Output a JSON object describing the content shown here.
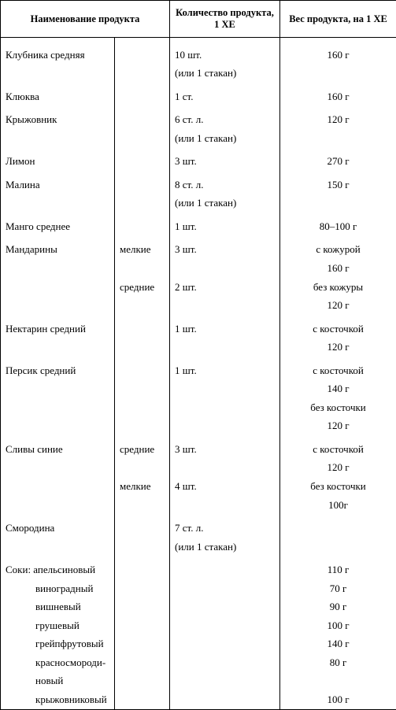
{
  "headers": {
    "name": "Наименование продукта",
    "qty": "Количество продукта, 1 ХЕ",
    "weight": "Вес продукта, на 1 ХЕ"
  },
  "rows": [
    {
      "name": "Клубника средняя",
      "size": "",
      "qty": "10 шт.\n(или 1 стакан)",
      "weight": "160 г"
    },
    {
      "name": "Клюква",
      "size": "",
      "qty": "1 ст.",
      "weight": "160 г"
    },
    {
      "name": "Крыжовник",
      "size": "",
      "qty": "6 ст. л.\n(или 1 стакан)",
      "weight": "120 г"
    },
    {
      "name": "Лимон",
      "size": "",
      "qty": "3 шт.",
      "weight": "270 г"
    },
    {
      "name": "Малина",
      "size": "",
      "qty": "8 ст. л.\n(или 1 стакан)",
      "weight": "150 г"
    },
    {
      "name": "Манго среднее",
      "size": "",
      "qty": "1 шт.",
      "weight": "80–100 г"
    },
    {
      "name": "Мандарины",
      "size": "мелкие",
      "qty": "3 шт.",
      "weight": "с кожурой\n160 г"
    },
    {
      "name": "",
      "size": "средние",
      "qty": "2 шт.",
      "weight": "без кожуры\n120 г"
    },
    {
      "name": "Нектарин средний",
      "size": "",
      "qty": "1 шт.",
      "weight": "с косточкой\n120 г"
    },
    {
      "name": "Персик средний",
      "size": "",
      "qty": "1 шт.",
      "weight": "с косточкой\n140 г"
    },
    {
      "name": "",
      "size": "",
      "qty": "",
      "weight": "без косточки\n120 г"
    },
    {
      "name": "Сливы синие",
      "size": "средние",
      "qty": "3 шт.",
      "weight": "с косточкой\n120 г"
    },
    {
      "name": "",
      "size": "мелкие",
      "qty": "4 шт.",
      "weight": "без косточки\n100г"
    },
    {
      "name": "Смородина",
      "size": "",
      "qty": "7 ст. л.\n(или 1 стакан)",
      "weight": ""
    }
  ],
  "juices_header": "Соки:",
  "juices": [
    {
      "name": "апельсиновый",
      "weight": "110 г"
    },
    {
      "name": "виноградный",
      "weight": "70 г"
    },
    {
      "name": "вишневый",
      "weight": "90 г"
    },
    {
      "name": "грушевый",
      "weight": "100 г"
    },
    {
      "name": "грейпфрутовый",
      "weight": "140 г"
    },
    {
      "name": "красносмороди-\nновый",
      "weight": "80 г"
    },
    {
      "name": "крыжовниковый",
      "weight": "100 г"
    }
  ]
}
